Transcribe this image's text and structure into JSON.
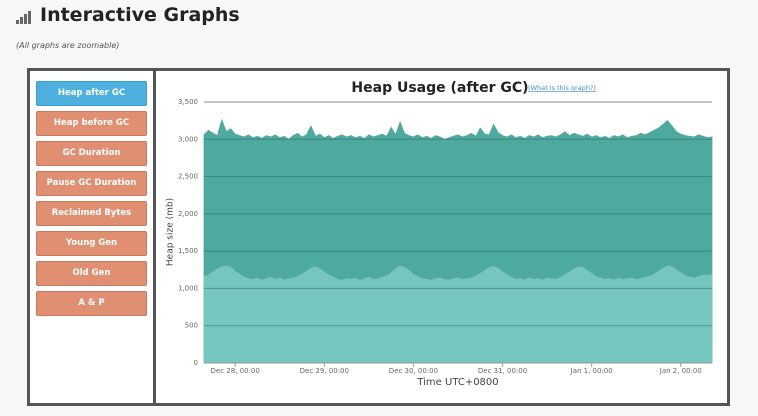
{
  "header": {
    "title": "Interactive Graphs",
    "note": "(All graphs are zoomable)"
  },
  "buttons": [
    "Heap after GC",
    "Heap before GC",
    "GC Duration",
    "Pause GC Duration",
    "Reclaimed Bytes",
    "Young Gen",
    "Old Gen",
    "A & P"
  ],
  "chart_data": {
    "type": "area",
    "title": "Heap Usage (after GC)",
    "link": "(What is this graph?)",
    "x_label": "Time UTC+0800",
    "y_label": "Heap size (mb)",
    "categories": [
      null,
      null,
      null,
      null,
      null,
      null,
      null,
      "Dec 28, 00:00",
      null,
      null,
      null,
      null,
      null,
      null,
      null,
      null,
      null,
      null,
      null,
      null,
      null,
      null,
      null,
      null,
      null,
      null,
      null,
      "Dec 29, 00:00",
      null,
      null,
      null,
      null,
      null,
      null,
      null,
      null,
      null,
      null,
      null,
      null,
      null,
      null,
      null,
      null,
      null,
      null,
      null,
      "Dec 30, 00:00",
      null,
      null,
      null,
      null,
      null,
      null,
      null,
      null,
      null,
      null,
      null,
      null,
      null,
      null,
      null,
      null,
      null,
      null,
      null,
      "Dec 31, 00:00",
      null,
      null,
      null,
      null,
      null,
      null,
      null,
      null,
      null,
      null,
      null,
      null,
      null,
      null,
      null,
      null,
      null,
      null,
      null,
      "Jan 1, 00:00",
      null,
      null,
      null,
      null,
      null,
      null,
      null,
      null,
      null,
      null,
      null,
      null,
      null,
      null,
      null,
      null,
      null,
      null,
      null,
      "Jan 2, 00:00",
      null,
      null,
      null,
      null,
      null,
      null,
      null
    ],
    "series": [
      {
        "color": "#4ea99f",
        "values": [
          3060,
          3120,
          3080,
          3050,
          3260,
          3100,
          3140,
          3070,
          3050,
          3030,
          3060,
          3020,
          3040,
          3010,
          3050,
          3030,
          3060,
          3020,
          3040,
          3000,
          3050,
          3080,
          3030,
          3060,
          3180,
          3040,
          3070,
          3020,
          3050,
          3010,
          3040,
          3060,
          3030,
          3050,
          3020,
          3040,
          3010,
          3060,
          3030,
          3050,
          3070,
          3040,
          3160,
          3060,
          3230,
          3080,
          3050,
          3030,
          3060,
          3020,
          3040,
          3010,
          3050,
          3030,
          3000,
          3020,
          3040,
          3060,
          3030,
          3050,
          3080,
          3040,
          3150,
          3070,
          3060,
          3200,
          3090,
          3050,
          3030,
          3060,
          3020,
          3040,
          3010,
          3050,
          3030,
          3060,
          3020,
          3040,
          3050,
          3030,
          3060,
          3100,
          3050,
          3080,
          3060,
          3040,
          3070,
          3030,
          3050,
          3020,
          3040,
          3010,
          3050,
          3030,
          3060,
          3020,
          3040,
          3050,
          3080,
          3060,
          3090,
          3120,
          3150,
          3200,
          3250,
          3180,
          3100,
          3070,
          3050,
          3040,
          3030,
          3060,
          3040,
          3020,
          3030
        ]
      },
      {
        "color": "#74c6be",
        "values": [
          1160,
          1180,
          1220,
          1260,
          1290,
          1300,
          1280,
          1230,
          1190,
          1150,
          1130,
          1120,
          1140,
          1110,
          1130,
          1150,
          1120,
          1140,
          1110,
          1130,
          1140,
          1160,
          1190,
          1230,
          1270,
          1290,
          1260,
          1220,
          1180,
          1150,
          1120,
          1110,
          1130,
          1120,
          1140,
          1110,
          1130,
          1150,
          1120,
          1130,
          1150,
          1170,
          1210,
          1260,
          1300,
          1280,
          1240,
          1190,
          1160,
          1130,
          1120,
          1110,
          1130,
          1140,
          1120,
          1110,
          1130,
          1140,
          1120,
          1130,
          1140,
          1170,
          1200,
          1240,
          1280,
          1300,
          1270,
          1220,
          1180,
          1150,
          1120,
          1130,
          1110,
          1140,
          1120,
          1130,
          1110,
          1140,
          1130,
          1120,
          1150,
          1180,
          1220,
          1260,
          1290,
          1280,
          1240,
          1200,
          1160,
          1140,
          1120,
          1130,
          1110,
          1140,
          1120,
          1130,
          1140,
          1120,
          1130,
          1150,
          1160,
          1190,
          1230,
          1270,
          1300,
          1290,
          1250,
          1210,
          1170,
          1150,
          1140,
          1160,
          1180,
          1170,
          1190
        ]
      }
    ],
    "ylim": [
      0,
      3500
    ],
    "yticks": [
      0,
      500,
      {
        "value": 1000,
        "label": "1,000"
      },
      {
        "value": 1500,
        "label": "1,500"
      },
      {
        "value": 2000,
        "label": "2,000"
      },
      {
        "value": 2500,
        "label": "2,500"
      },
      {
        "value": 3000,
        "label": "3,000"
      },
      {
        "value": 3500,
        "label": "3,500"
      }
    ],
    "grid": true
  }
}
